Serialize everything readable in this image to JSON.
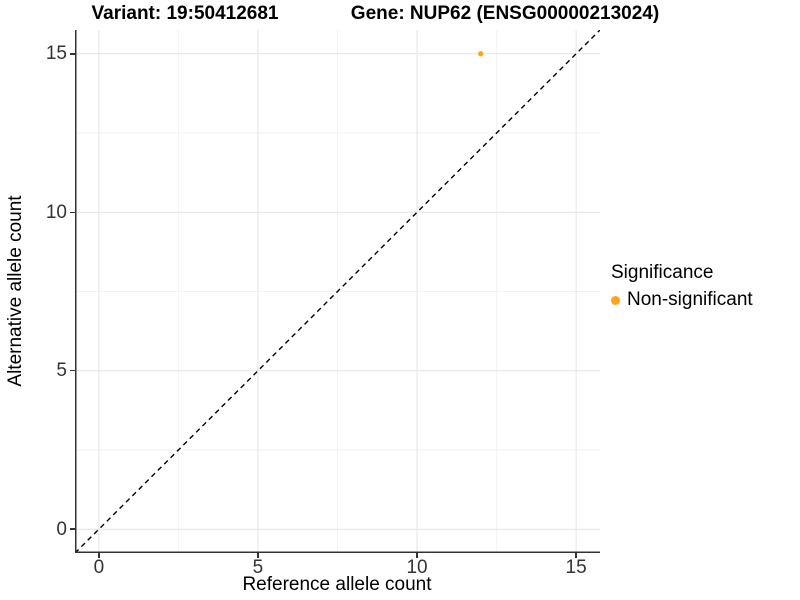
{
  "chart_data": {
    "type": "scatter",
    "titles": {
      "left": "Variant: 19:50412681",
      "right": "Gene: NUP62 (ENSG00000213024)"
    },
    "xlabel": "Reference allele count",
    "ylabel": "Alternative allele count",
    "xlim": [
      -0.75,
      15.75
    ],
    "ylim": [
      -0.75,
      15.75
    ],
    "x_ticks": [
      0,
      5,
      10,
      15
    ],
    "y_ticks": [
      0,
      5,
      10,
      15
    ],
    "x_minor_ticks": [
      2.5,
      7.5,
      12.5
    ],
    "y_minor_ticks": [
      2.5,
      7.5,
      12.5
    ],
    "grid": "major+minor",
    "series": [
      {
        "name": "Non-significant",
        "color": "#FFA319",
        "points": [
          {
            "x": 12,
            "y": 15
          }
        ]
      }
    ],
    "reference_line": {
      "equation": "y = x",
      "style": "dashed",
      "color": "#000000"
    },
    "legend": {
      "title": "Significance",
      "position": "right",
      "items": [
        {
          "label": "Non-significant",
          "color": "#FFA319"
        }
      ]
    }
  }
}
